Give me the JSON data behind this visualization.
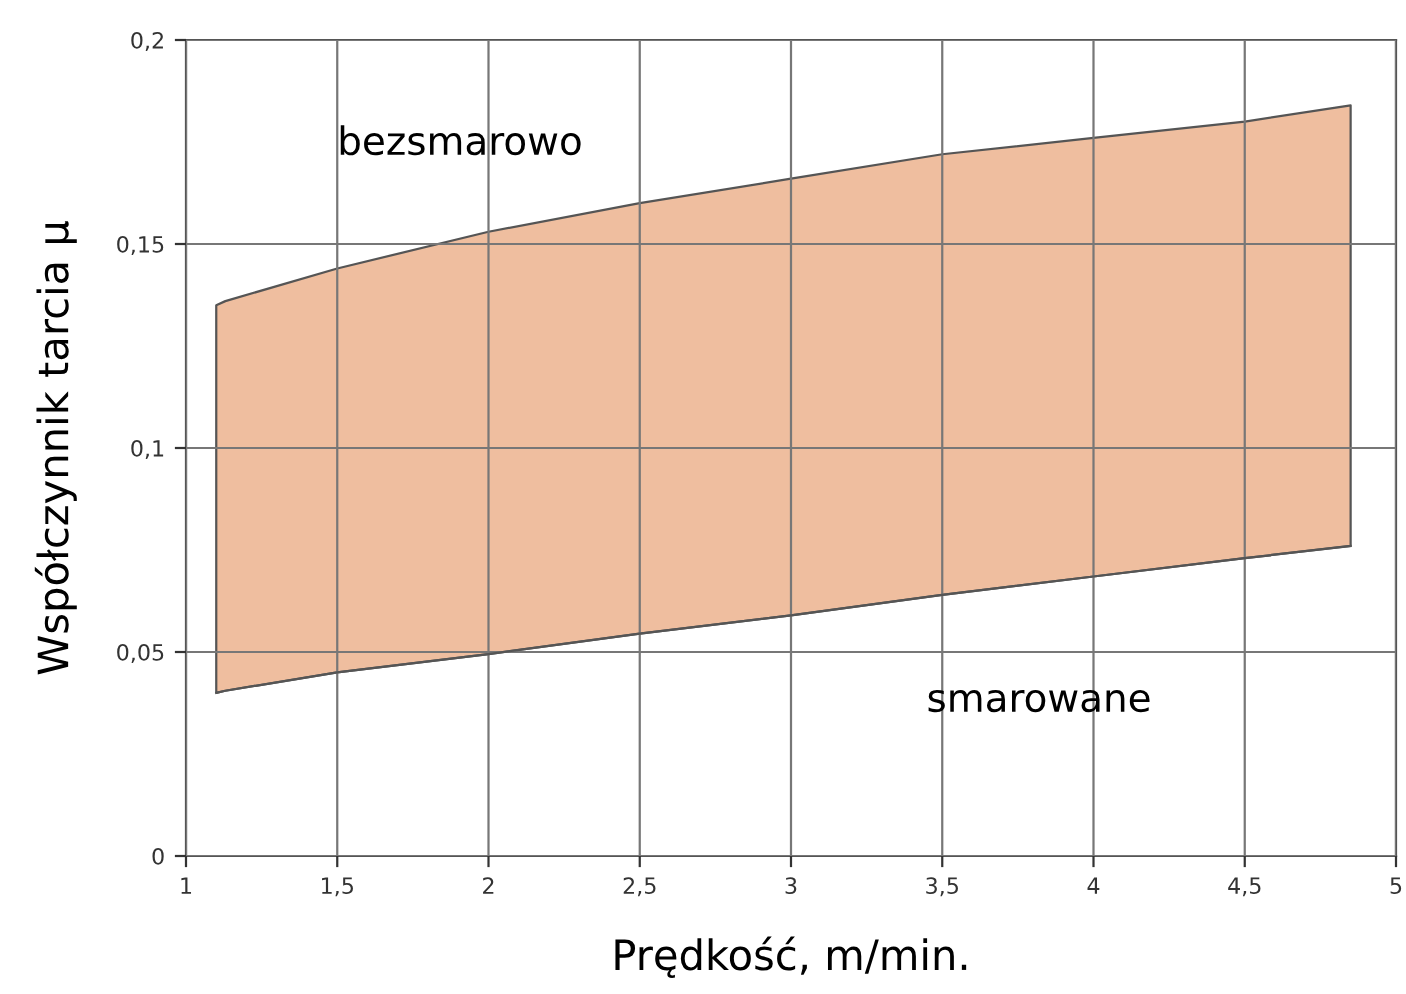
{
  "chart_data": {
    "type": "area",
    "stacked": true,
    "x": [
      1.1,
      1.13,
      1.5,
      2,
      2.5,
      3,
      3.5,
      4,
      4.5,
      4.85
    ],
    "xlabel": "Prędkość, m/min.",
    "ylabel": "Współczynnik tarcia μ",
    "series": [
      {
        "color": "#ffffff",
        "values": [
          0.04,
          0.0405,
          0.045,
          0.0495,
          0.0545,
          0.059,
          0.064,
          0.0685,
          0.073,
          0.076
        ]
      },
      {
        "color": "#efbe9f",
        "values": [
          0.095,
          0.0955,
          0.099,
          0.1035,
          0.1055,
          0.107,
          0.108,
          0.1075,
          0.107,
          0.108
        ]
      }
    ],
    "xlim": [
      1,
      5
    ],
    "ylim": [
      0,
      0.2
    ],
    "xticks": [
      1,
      {
        "value": 1.5,
        "label": "1,5"
      },
      2,
      {
        "value": 2.5,
        "label": "2,5"
      },
      3,
      {
        "value": 3.5,
        "label": "3,5"
      },
      4,
      {
        "value": 4.5,
        "label": "4,5"
      },
      5
    ],
    "yticks": [
      0,
      {
        "value": 0.05,
        "label": "0,05"
      },
      {
        "value": 0.1,
        "label": "0,1"
      },
      {
        "value": 0.15,
        "label": "0,15"
      },
      {
        "value": 0.2,
        "label": "0,2"
      }
    ],
    "grid": true,
    "annotations": [
      "bezsmarowo",
      "smarowane"
    ]
  }
}
